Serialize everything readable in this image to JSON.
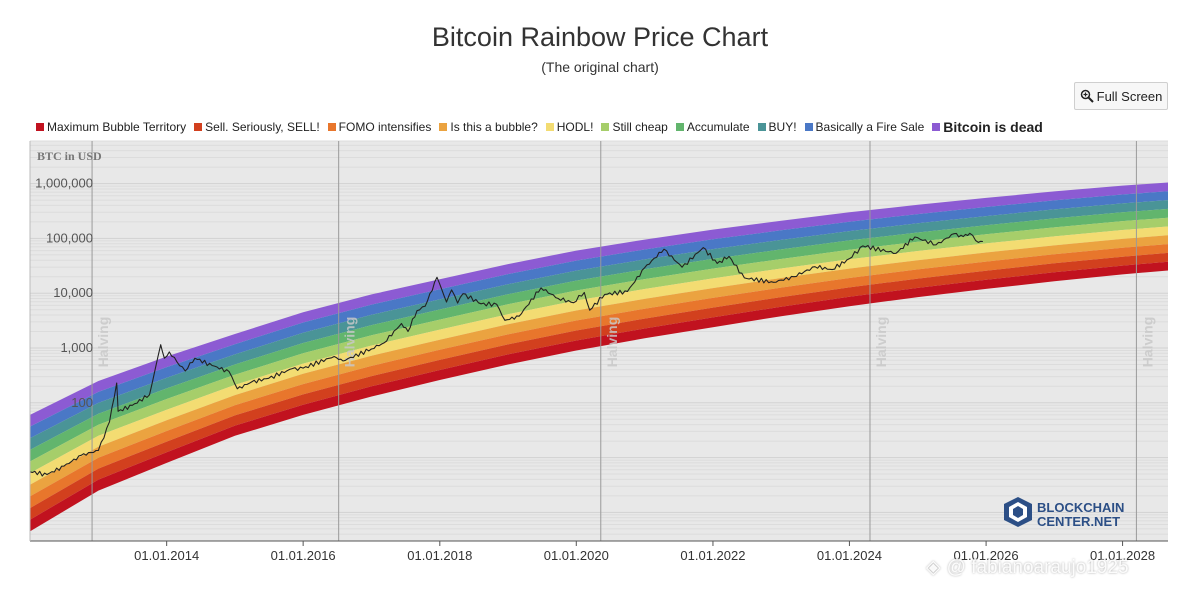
{
  "page": {
    "title": "Bitcoin Rainbow Price Chart",
    "subtitle": "(The original chart)",
    "fullscreen_label": "Full Screen",
    "fullscreen_icon": "zoom-icon",
    "logo_line1": "BLOCKCHAIN",
    "logo_line2": "CENTER.NET",
    "watermark": "@ fabianoaraujo1925"
  },
  "chart_data": {
    "type": "area",
    "title": "Bitcoin Rainbow Price Chart",
    "subtitle": "(The original chart)",
    "ylabel": "BTC in USD",
    "y_scale": "log",
    "ylim": [
      0.3,
      6000000
    ],
    "xlim": [
      "2012-01-01",
      "2028-08-31"
    ],
    "x_ticks": [
      "01.01.2014",
      "01.01.2016",
      "01.01.2018",
      "01.01.2020",
      "01.01.2022",
      "01.01.2024",
      "01.01.2026",
      "01.01.2028"
    ],
    "y_ticks": [
      {
        "value": 100,
        "label": "100"
      },
      {
        "value": 1000,
        "label": "1,000"
      },
      {
        "value": 10000,
        "label": "10,000"
      },
      {
        "value": 100000,
        "label": "100,000"
      },
      {
        "value": 1000000,
        "label": "1,000,000"
      }
    ],
    "grid": true,
    "legend_position": "top",
    "bands": [
      {
        "name": "Maximum Bubble Territory",
        "color": "#c1121f"
      },
      {
        "name": "Sell. Seriously, SELL!",
        "color": "#d2401e"
      },
      {
        "name": "FOMO intensifies",
        "color": "#e8762c"
      },
      {
        "name": "Is this a bubble?",
        "color": "#eba340"
      },
      {
        "name": "HODL!",
        "color": "#f3dc72"
      },
      {
        "name": "Still cheap",
        "color": "#a6ce6a"
      },
      {
        "name": "Accumulate",
        "color": "#62b56d"
      },
      {
        "name": "BUY!",
        "color": "#4a9497"
      },
      {
        "name": "Basically a Fire Sale",
        "color": "#4a78c6"
      },
      {
        "name": "Bitcoin is dead",
        "color": "#8c5bd3"
      }
    ],
    "band_edges": [
      {
        "date": "2012-01-01",
        "low": 0.45,
        "high": 60
      },
      {
        "date": "2013-01-01",
        "low": 2.5,
        "high": 250
      },
      {
        "date": "2014-01-01",
        "low": 8,
        "high": 700
      },
      {
        "date": "2015-01-01",
        "low": 25,
        "high": 1800
      },
      {
        "date": "2016-01-01",
        "low": 60,
        "high": 4500
      },
      {
        "date": "2017-01-01",
        "low": 130,
        "high": 9500
      },
      {
        "date": "2018-01-01",
        "low": 260,
        "high": 18000
      },
      {
        "date": "2019-01-01",
        "low": 500,
        "high": 34000
      },
      {
        "date": "2020-01-01",
        "low": 900,
        "high": 60000
      },
      {
        "date": "2021-01-01",
        "low": 1500,
        "high": 95000
      },
      {
        "date": "2022-01-01",
        "low": 2400,
        "high": 145000
      },
      {
        "date": "2023-01-01",
        "low": 3800,
        "high": 210000
      },
      {
        "date": "2024-01-01",
        "low": 5800,
        "high": 300000
      },
      {
        "date": "2025-01-01",
        "low": 8500,
        "high": 410000
      },
      {
        "date": "2026-01-01",
        "low": 12000,
        "high": 550000
      },
      {
        "date": "2027-01-01",
        "low": 16500,
        "high": 720000
      },
      {
        "date": "2028-01-01",
        "low": 22000,
        "high": 920000
      },
      {
        "date": "2028-08-31",
        "low": 26000,
        "high": 1050000
      }
    ],
    "price_series": {
      "name": "BTC price",
      "color": "#222222",
      "points": [
        [
          "2012-01-01",
          5.5
        ],
        [
          "2012-04-01",
          4.9
        ],
        [
          "2012-07-01",
          7
        ],
        [
          "2012-10-01",
          11
        ],
        [
          "2013-01-01",
          13.5
        ],
        [
          "2013-03-01",
          45
        ],
        [
          "2013-04-09",
          230
        ],
        [
          "2013-04-16",
          70
        ],
        [
          "2013-07-01",
          90
        ],
        [
          "2013-10-01",
          140
        ],
        [
          "2013-11-30",
          1150
        ],
        [
          "2013-12-20",
          650
        ],
        [
          "2014-01-15",
          850
        ],
        [
          "2014-02-25",
          560
        ],
        [
          "2014-04-10",
          380
        ],
        [
          "2014-06-01",
          650
        ],
        [
          "2014-09-01",
          480
        ],
        [
          "2014-12-01",
          370
        ],
        [
          "2015-01-14",
          180
        ],
        [
          "2015-04-01",
          240
        ],
        [
          "2015-07-01",
          280
        ],
        [
          "2015-11-04",
          420
        ],
        [
          "2016-01-01",
          430
        ],
        [
          "2016-06-15",
          700
        ],
        [
          "2016-08-01",
          580
        ],
        [
          "2016-12-31",
          960
        ],
        [
          "2017-03-10",
          1250
        ],
        [
          "2017-06-10",
          2800
        ],
        [
          "2017-07-15",
          2000
        ],
        [
          "2017-09-01",
          4800
        ],
        [
          "2017-10-15",
          5800
        ],
        [
          "2017-12-17",
          19500
        ],
        [
          "2018-02-06",
          6900
        ],
        [
          "2018-03-05",
          11500
        ],
        [
          "2018-04-06",
          6600
        ],
        [
          "2018-05-05",
          9800
        ],
        [
          "2018-08-10",
          6400
        ],
        [
          "2018-11-01",
          6300
        ],
        [
          "2018-12-15",
          3200
        ],
        [
          "2019-03-01",
          3800
        ],
        [
          "2019-06-26",
          12500
        ],
        [
          "2019-09-26",
          8000
        ],
        [
          "2019-12-17",
          6700
        ],
        [
          "2020-02-13",
          10300
        ],
        [
          "2020-03-13",
          4900
        ],
        [
          "2020-06-01",
          9500
        ],
        [
          "2020-10-01",
          10800
        ],
        [
          "2020-12-31",
          29000
        ],
        [
          "2021-04-14",
          63500
        ],
        [
          "2021-07-20",
          29800
        ],
        [
          "2021-11-10",
          68000
        ],
        [
          "2022-01-24",
          35000
        ],
        [
          "2022-03-28",
          47000
        ],
        [
          "2022-06-18",
          19000
        ],
        [
          "2022-11-21",
          15800
        ],
        [
          "2023-03-10",
          20000
        ],
        [
          "2023-07-01",
          30500
        ],
        [
          "2023-10-01",
          27000
        ],
        [
          "2023-12-31",
          42500
        ],
        [
          "2024-03-13",
          73000
        ],
        [
          "2024-09-06",
          53500
        ],
        [
          "2024-12-16",
          106000
        ],
        [
          "2025-04-08",
          76500
        ],
        [
          "2025-07-14",
          122000
        ],
        [
          "2025-09-01",
          108000
        ],
        [
          "2025-10-06",
          124000
        ],
        [
          "2025-11-21",
          84500
        ],
        [
          "2025-12-15",
          88000
        ]
      ]
    },
    "vertical_markers": [
      {
        "date": "2012-11-28",
        "label": "Halving"
      },
      {
        "date": "2016-07-09",
        "label": "Halving"
      },
      {
        "date": "2020-05-11",
        "label": "Halving"
      },
      {
        "date": "2024-04-20",
        "label": "Halving"
      },
      {
        "date": "2028-03-15",
        "label": "Halving"
      }
    ]
  }
}
